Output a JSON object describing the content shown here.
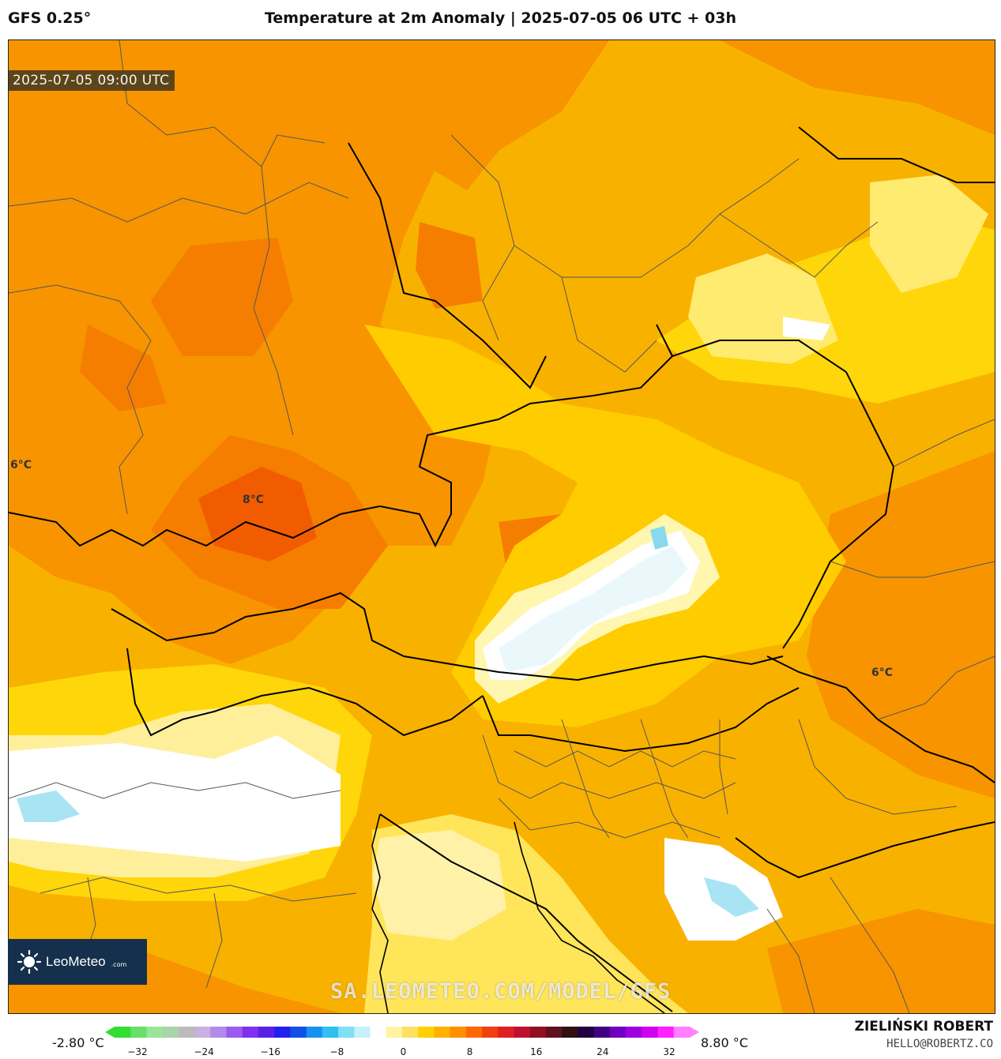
{
  "header": {
    "model": "GFS 0.25°",
    "title": "Temperature at 2m Anomaly | 2025-07-05 06 UTC + 03h"
  },
  "map": {
    "valid_time": "2025-07-05 09:00 UTC",
    "labels": [
      {
        "id": "west",
        "text": "6°C"
      },
      {
        "id": "center",
        "text": "8°C"
      },
      {
        "id": "east",
        "text": "6°C"
      }
    ],
    "watermark": "SA.LEOMETEO.COM/MODEL/GFS",
    "logo": {
      "text": "LeoMeteo",
      "suffix": ".com"
    }
  },
  "colorbar": {
    "min_label": "-2.80 °C",
    "max_label": "8.80 °C",
    "ticks": [
      "−32",
      "−24",
      "−16",
      "−8",
      "0",
      "8",
      "16",
      "24",
      "32"
    ],
    "colors": [
      "#33dd33",
      "#66e066",
      "#99e699",
      "#aad4aa",
      "#bbbbbb",
      "#c8b0e0",
      "#b08be8",
      "#9a5bef",
      "#8030ee",
      "#5a20e8",
      "#2020f0",
      "#1050e8",
      "#1890f0",
      "#30c0f0",
      "#80e0f4",
      "#c8f0f8",
      "#ffffff",
      "#fff4a0",
      "#ffe060",
      "#ffd000",
      "#ffb000",
      "#ff9000",
      "#ff6800",
      "#f04010",
      "#e02020",
      "#c01030",
      "#901020",
      "#601020",
      "#301010",
      "#200040",
      "#400080",
      "#7000c0",
      "#a000e0",
      "#d000f0",
      "#ff20ff",
      "#ff80ff"
    ]
  },
  "footer": {
    "author": "ZIELIŃSKI ROBERT",
    "email": "HELLO@ROBERTZ.CO"
  }
}
